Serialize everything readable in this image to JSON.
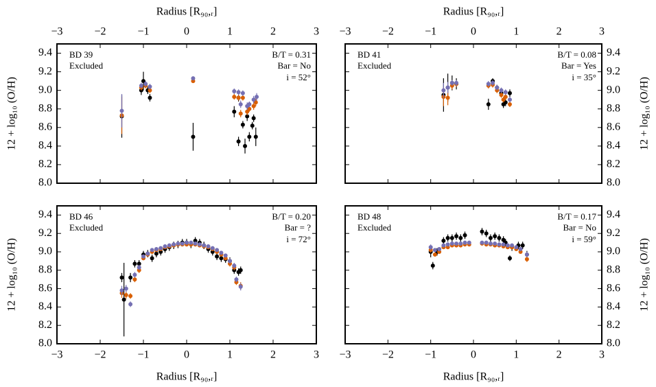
{
  "chart_data": [
    {
      "type": "scatter",
      "label": "BD 39",
      "status": "Excluded",
      "bt": "B/T = 0.31",
      "bar": "Bar = No",
      "incl": "i = 52°",
      "xlabel": "Radius [R₉₀,ᵣ]",
      "ylabel": "12 + log₁₀ (O/H)",
      "xaxis_side": "top",
      "yaxis_side": "left",
      "xlim": [
        -3,
        3
      ],
      "ylim": [
        8,
        9.5
      ],
      "xticks": [
        {
          "value": -3,
          "label": "−3"
        },
        {
          "value": -2,
          "label": "−2"
        },
        {
          "value": -1,
          "label": "−1"
        },
        0,
        1,
        2,
        3
      ],
      "yticks": [
        {
          "value": 8,
          "label": "8.0"
        },
        8.2,
        8.4,
        8.6,
        8.8,
        {
          "value": 9,
          "label": "9.0"
        },
        9.2,
        9.4
      ],
      "series": [
        {
          "color": "#000000",
          "x": [
            -1.5,
            -1.05,
            -1.0,
            -0.9,
            -0.85,
            0.15,
            1.1,
            1.2,
            1.2,
            1.3,
            1.35,
            1.4,
            1.45,
            1.52,
            1.55,
            1.6
          ],
          "values": [
            8.72,
            9.0,
            9.1,
            9.0,
            8.92,
            8.5,
            8.77,
            8.45,
            8.92,
            8.63,
            8.4,
            8.72,
            8.5,
            8.62,
            8.7,
            8.5
          ],
          "errors": [
            0.23,
            0.05,
            0.1,
            0.04,
            0.04,
            0.15,
            0.06,
            0.05,
            0.04,
            0.04,
            0.08,
            0.05,
            0.05,
            0.04,
            0.04,
            0.1
          ]
        },
        {
          "color": "#d95f02",
          "x": [
            -1.5,
            -1.05,
            -0.95,
            -0.85,
            0.15,
            1.1,
            1.2,
            1.25,
            1.3,
            1.4,
            1.45,
            1.55,
            1.6
          ],
          "values": [
            8.73,
            9.03,
            9.05,
            9.0,
            9.1,
            8.93,
            8.92,
            8.75,
            8.92,
            8.77,
            8.8,
            8.83,
            8.87
          ],
          "errors": [
            0.2,
            0.03,
            0.03,
            0.03,
            0.02,
            0.03,
            0.03,
            0.04,
            0.03,
            0.04,
            0.03,
            0.04,
            0.04
          ]
        },
        {
          "color": "#7570b3",
          "x": [
            -1.5,
            -1.05,
            -0.95,
            -0.85,
            0.15,
            1.1,
            1.2,
            1.25,
            1.3,
            1.4,
            1.45,
            1.55,
            1.62
          ],
          "values": [
            8.78,
            9.05,
            9.07,
            9.04,
            9.13,
            8.99,
            8.98,
            8.85,
            8.97,
            8.83,
            8.85,
            8.9,
            8.93
          ],
          "errors": [
            0.18,
            0.03,
            0.03,
            0.03,
            0.02,
            0.03,
            0.03,
            0.04,
            0.03,
            0.04,
            0.03,
            0.04,
            0.04
          ]
        }
      ]
    },
    {
      "type": "scatter",
      "label": "BD 41",
      "status": "Excluded",
      "bt": "B/T = 0.08",
      "bar": "Bar = Yes",
      "incl": "i = 35°",
      "xlabel": "Radius [R₉₀,ᵣ]",
      "ylabel": "12 + log₁₀ (O/H)",
      "xaxis_side": "top",
      "yaxis_side": "right",
      "xlim": [
        -3,
        3
      ],
      "ylim": [
        8,
        9.5
      ],
      "xticks": [
        {
          "value": -3,
          "label": "−3"
        },
        {
          "value": -2,
          "label": "−2"
        },
        {
          "value": -1,
          "label": "−1"
        },
        0,
        1,
        2,
        3
      ],
      "yticks": [
        {
          "value": 8,
          "label": "8.0"
        },
        8.2,
        8.4,
        8.6,
        8.8,
        {
          "value": 9,
          "label": "9.0"
        },
        9.2,
        9.4
      ],
      "series": [
        {
          "color": "#000000",
          "x": [
            -0.7,
            -0.6,
            -0.5,
            -0.4,
            0.35,
            0.45,
            0.55,
            0.65,
            0.7,
            0.75,
            0.85
          ],
          "values": [
            8.95,
            9.03,
            9.08,
            9.07,
            8.85,
            9.1,
            9.03,
            8.97,
            8.85,
            8.87,
            8.97
          ],
          "errors": [
            0.18,
            0.15,
            0.08,
            0.06,
            0.06,
            0.03,
            0.03,
            0.04,
            0.04,
            0.04,
            0.04
          ]
        },
        {
          "color": "#d95f02",
          "x": [
            -0.7,
            -0.6,
            -0.5,
            -0.4,
            0.35,
            0.45,
            0.55,
            0.65,
            0.7,
            0.75,
            0.85
          ],
          "values": [
            8.93,
            8.92,
            9.05,
            9.07,
            9.05,
            9.06,
            9.0,
            8.95,
            8.9,
            8.93,
            8.85
          ],
          "errors": [
            0.1,
            0.08,
            0.04,
            0.03,
            0.03,
            0.03,
            0.03,
            0.03,
            0.03,
            0.03,
            0.03
          ]
        },
        {
          "color": "#7570b3",
          "x": [
            -0.7,
            -0.6,
            -0.5,
            -0.4,
            0.35,
            0.45,
            0.55,
            0.65,
            0.75,
            0.85
          ],
          "values": [
            9.0,
            9.03,
            9.08,
            9.08,
            9.07,
            9.08,
            9.03,
            9.0,
            8.98,
            8.9
          ],
          "errors": [
            0.08,
            0.06,
            0.03,
            0.03,
            0.03,
            0.03,
            0.03,
            0.03,
            0.03,
            0.03
          ]
        }
      ]
    },
    {
      "type": "scatter",
      "label": "BD 46",
      "status": "Excluded",
      "bt": "B/T = 0.20",
      "bar": "Bar = ?",
      "incl": "i = 72°",
      "xlabel": "Radius [R₉₀,ᵣ]",
      "ylabel": "12 + log₁₀ (O/H)",
      "xaxis_side": "bottom",
      "yaxis_side": "left",
      "xlim": [
        -3,
        3
      ],
      "ylim": [
        8,
        9.5
      ],
      "xticks": [
        {
          "value": -3,
          "label": "−3"
        },
        {
          "value": -2,
          "label": "−2"
        },
        {
          "value": -1,
          "label": "−1"
        },
        0,
        1,
        2,
        3
      ],
      "yticks": [
        {
          "value": 8,
          "label": "8.0"
        },
        8.2,
        8.4,
        8.6,
        8.8,
        {
          "value": 9,
          "label": "9.0"
        },
        9.2,
        9.4
      ],
      "series": [
        {
          "color": "#000000",
          "x": [
            -1.5,
            -1.45,
            -1.3,
            -1.2,
            -1.1,
            -1.0,
            -0.9,
            -0.8,
            -0.7,
            -0.6,
            -0.5,
            -0.4,
            -0.3,
            -0.2,
            -0.1,
            0.0,
            0.1,
            0.2,
            0.3,
            0.4,
            0.5,
            0.6,
            0.7,
            0.8,
            0.9,
            1.0,
            1.1,
            1.2,
            1.25
          ],
          "values": [
            8.72,
            8.48,
            8.72,
            8.87,
            8.87,
            8.97,
            8.98,
            8.93,
            8.98,
            9.0,
            9.03,
            9.05,
            9.07,
            9.08,
            9.1,
            9.1,
            9.08,
            9.12,
            9.1,
            9.07,
            9.03,
            9.0,
            8.95,
            8.93,
            8.92,
            8.9,
            8.8,
            8.78,
            8.8
          ],
          "errors": [
            0.05,
            0.4,
            0.05,
            0.04,
            0.04,
            0.04,
            0.04,
            0.04,
            0.04,
            0.04,
            0.04,
            0.04,
            0.04,
            0.04,
            0.04,
            0.04,
            0.04,
            0.04,
            0.04,
            0.04,
            0.04,
            0.04,
            0.04,
            0.04,
            0.04,
            0.04,
            0.04,
            0.04,
            0.04
          ]
        },
        {
          "color": "#d95f02",
          "x": [
            -1.5,
            -1.4,
            -1.3,
            -1.2,
            -1.1,
            -1.0,
            -0.9,
            -0.8,
            -0.7,
            -0.6,
            -0.5,
            -0.4,
            -0.3,
            -0.2,
            -0.1,
            0.0,
            0.1,
            0.2,
            0.3,
            0.4,
            0.5,
            0.6,
            0.7,
            0.8,
            0.9,
            1.0,
            1.1,
            1.15,
            1.25
          ],
          "values": [
            8.55,
            8.53,
            8.52,
            8.7,
            8.8,
            8.93,
            8.97,
            9.0,
            9.02,
            9.03,
            9.05,
            9.06,
            9.07,
            9.08,
            9.08,
            9.08,
            9.08,
            9.08,
            9.07,
            9.06,
            9.05,
            9.03,
            9.0,
            8.97,
            8.93,
            8.87,
            8.83,
            8.67,
            8.63
          ],
          "errors": [
            0.05,
            0.04,
            0.03,
            0.03,
            0.03,
            0.02,
            0.02,
            0.02,
            0.02,
            0.02,
            0.02,
            0.02,
            0.02,
            0.02,
            0.02,
            0.02,
            0.02,
            0.02,
            0.02,
            0.02,
            0.02,
            0.02,
            0.02,
            0.02,
            0.02,
            0.03,
            0.03,
            0.03,
            0.04
          ]
        },
        {
          "color": "#7570b3",
          "x": [
            -1.5,
            -1.4,
            -1.3,
            -1.2,
            -1.1,
            -1.0,
            -0.9,
            -0.8,
            -0.7,
            -0.6,
            -0.5,
            -0.4,
            -0.3,
            -0.2,
            -0.1,
            0.0,
            0.1,
            0.2,
            0.3,
            0.4,
            0.5,
            0.6,
            0.7,
            0.8,
            0.9,
            1.0,
            1.1,
            1.15,
            1.25
          ],
          "values": [
            8.58,
            8.6,
            8.43,
            8.75,
            8.83,
            8.95,
            8.98,
            9.02,
            9.03,
            9.04,
            9.06,
            9.07,
            9.08,
            9.09,
            9.09,
            9.1,
            9.1,
            9.09,
            9.08,
            9.07,
            9.06,
            9.04,
            9.02,
            8.99,
            8.96,
            8.9,
            8.85,
            8.7,
            8.62
          ],
          "errors": [
            0.05,
            0.04,
            0.03,
            0.03,
            0.03,
            0.02,
            0.02,
            0.02,
            0.02,
            0.02,
            0.02,
            0.02,
            0.02,
            0.02,
            0.02,
            0.02,
            0.02,
            0.02,
            0.02,
            0.02,
            0.02,
            0.02,
            0.02,
            0.02,
            0.02,
            0.03,
            0.03,
            0.03,
            0.04
          ]
        }
      ]
    },
    {
      "type": "scatter",
      "label": "BD 48",
      "status": "Excluded",
      "bt": "B/T = 0.17",
      "bar": "Bar = No",
      "incl": "i = 59°",
      "xlabel": "Radius [R₉₀,ᵣ]",
      "ylabel": "12 + log₁₀ (O/H)",
      "xaxis_side": "bottom",
      "yaxis_side": "right",
      "xlim": [
        -3,
        3
      ],
      "ylim": [
        8,
        9.5
      ],
      "xticks": [
        {
          "value": -3,
          "label": "−3"
        },
        {
          "value": -2,
          "label": "−2"
        },
        {
          "value": -1,
          "label": "−1"
        },
        0,
        1,
        2,
        3
      ],
      "yticks": [
        {
          "value": 8,
          "label": "8.0"
        },
        8.2,
        8.4,
        8.6,
        8.8,
        {
          "value": 9,
          "label": "9.0"
        },
        9.2,
        9.4
      ],
      "series": [
        {
          "color": "#000000",
          "x": [
            -1.0,
            -0.95,
            -0.85,
            -0.7,
            -0.6,
            -0.5,
            -0.4,
            -0.3,
            -0.2,
            0.2,
            0.3,
            0.4,
            0.5,
            0.6,
            0.7,
            0.75,
            0.85,
            0.9,
            1.05,
            1.15,
            1.25
          ],
          "values": [
            9.0,
            8.85,
            9.0,
            9.12,
            9.15,
            9.15,
            9.17,
            9.15,
            9.18,
            9.22,
            9.2,
            9.15,
            9.17,
            9.15,
            9.13,
            9.1,
            8.93,
            9.05,
            9.07,
            9.07,
            8.97
          ],
          "errors": [
            0.06,
            0.04,
            0.04,
            0.04,
            0.04,
            0.04,
            0.04,
            0.04,
            0.04,
            0.04,
            0.04,
            0.04,
            0.04,
            0.04,
            0.04,
            0.04,
            0.03,
            0.04,
            0.04,
            0.04,
            0.04
          ]
        },
        {
          "color": "#d95f02",
          "x": [
            -1.0,
            -0.9,
            -0.8,
            -0.7,
            -0.6,
            -0.5,
            -0.4,
            -0.3,
            -0.2,
            -0.1,
            0.2,
            0.3,
            0.4,
            0.5,
            0.6,
            0.7,
            0.8,
            0.9,
            1.0,
            1.1,
            1.25
          ],
          "values": [
            9.02,
            8.97,
            9.0,
            9.05,
            9.05,
            9.07,
            9.07,
            9.07,
            9.08,
            9.08,
            9.09,
            9.08,
            9.08,
            9.07,
            9.07,
            9.06,
            9.05,
            9.05,
            9.03,
            9.0,
            8.92
          ],
          "errors": [
            0.03,
            0.02,
            0.02,
            0.02,
            0.02,
            0.02,
            0.02,
            0.02,
            0.02,
            0.02,
            0.02,
            0.02,
            0.02,
            0.02,
            0.02,
            0.02,
            0.02,
            0.02,
            0.02,
            0.02,
            0.03
          ]
        },
        {
          "color": "#7570b3",
          "x": [
            -1.0,
            -0.9,
            -0.8,
            -0.7,
            -0.6,
            -0.5,
            -0.4,
            -0.3,
            -0.2,
            -0.1,
            0.2,
            0.3,
            0.4,
            0.5,
            0.6,
            0.7,
            0.8,
            0.9,
            1.0,
            1.1,
            1.25
          ],
          "values": [
            9.05,
            9.02,
            9.03,
            9.07,
            9.08,
            9.09,
            9.09,
            9.09,
            9.1,
            9.1,
            9.1,
            9.1,
            9.09,
            9.09,
            9.08,
            9.08,
            9.07,
            9.07,
            9.05,
            9.03,
            8.97
          ],
          "errors": [
            0.03,
            0.02,
            0.02,
            0.02,
            0.02,
            0.02,
            0.02,
            0.02,
            0.02,
            0.02,
            0.02,
            0.02,
            0.02,
            0.02,
            0.02,
            0.02,
            0.02,
            0.02,
            0.02,
            0.02,
            0.03
          ]
        }
      ]
    }
  ]
}
